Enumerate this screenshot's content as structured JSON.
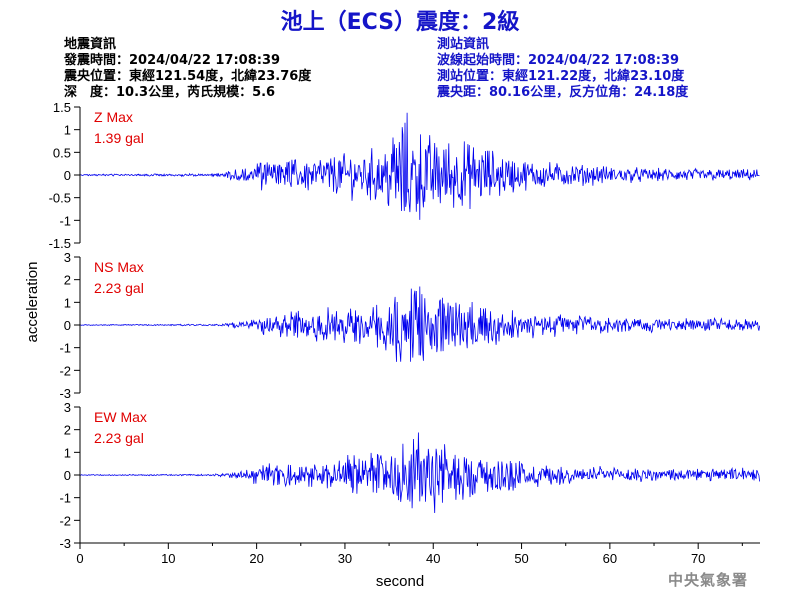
{
  "title": "池上（ECS）震度：2級",
  "event_info": {
    "heading": "地震資訊",
    "origin_time": "發震時間：2024/04/22 17:08:39",
    "epicenter": "震央位置：東經121.54度，北緯23.76度",
    "depth_magnitude": "深　度：10.3公里，芮氏規模：5.6"
  },
  "station_info": {
    "heading": "測站資訊",
    "waveform_start": "波線起始時間：2024/04/22 17:08:39",
    "station_location": "測站位置：東經121.22度，北緯23.10度",
    "distance_azimuth": "震央距：80.16公里，反方位角：24.18度"
  },
  "agency": "中央氣象署",
  "colors": {
    "title": "#1515c8",
    "trace": "#0000ee",
    "peak_label": "#e00000",
    "axis": "#000000"
  },
  "chart_data": {
    "type": "line",
    "xlabel": "second",
    "ylabel": "acceleration",
    "xlim": [
      0,
      77
    ],
    "xticks": [
      0,
      10,
      20,
      30,
      40,
      50,
      60,
      70
    ],
    "grid": false,
    "panels": [
      {
        "component": "Z",
        "peak_label": "Z Max",
        "peak_value": "1.39 gal",
        "ylim": [
          -1.5,
          1.5
        ],
        "yticks": [
          -1.5,
          -1,
          -0.5,
          0,
          0.5,
          1,
          1.5
        ],
        "ytick_labels": [
          "-1.5",
          "-1",
          "-0.5",
          "0",
          "0.5",
          "1",
          "1.5"
        ],
        "envelope": {
          "t": [
            0,
            15,
            18,
            19,
            22,
            26,
            30,
            33,
            35,
            36,
            37,
            38,
            40,
            43,
            46,
            50,
            53,
            56,
            60,
            65,
            70,
            77
          ],
          "amp": [
            0.02,
            0.03,
            0.15,
            0.3,
            0.35,
            0.4,
            0.5,
            0.6,
            0.85,
            1.2,
            1.39,
            1.1,
            0.9,
            0.8,
            0.65,
            0.35,
            0.3,
            0.25,
            0.2,
            0.15,
            0.15,
            0.12
          ]
        }
      },
      {
        "component": "NS",
        "peak_label": "NS Max",
        "peak_value": "2.23 gal",
        "ylim": [
          -3,
          3
        ],
        "yticks": [
          -3,
          -2,
          -1,
          0,
          1,
          2,
          3
        ],
        "ytick_labels": [
          "-3",
          "-2",
          "-1",
          "0",
          "1",
          "2",
          "3"
        ],
        "envelope": {
          "t": [
            0,
            16,
            19,
            20,
            23,
            26,
            30,
            33,
            35,
            36,
            37,
            38,
            40,
            43,
            46,
            50,
            55,
            60,
            65,
            70,
            77
          ],
          "amp": [
            0.02,
            0.04,
            0.2,
            0.4,
            0.6,
            0.7,
            0.9,
            1.0,
            1.5,
            2.23,
            1.6,
            1.9,
            1.5,
            1.2,
            0.9,
            0.7,
            0.45,
            0.35,
            0.3,
            0.3,
            0.25
          ]
        }
      },
      {
        "component": "EW",
        "peak_label": "EW Max",
        "peak_value": "2.23 gal",
        "ylim": [
          -3,
          3
        ],
        "yticks": [
          -3,
          -2,
          -1,
          0,
          1,
          2,
          3
        ],
        "ytick_labels": [
          "-3",
          "-2",
          "-1",
          "0",
          "1",
          "2",
          "3"
        ],
        "envelope": {
          "t": [
            0,
            15,
            18,
            20,
            23,
            26,
            30,
            33,
            36,
            38,
            39,
            40,
            42,
            45,
            48,
            52,
            56,
            60,
            65,
            70,
            77
          ],
          "amp": [
            0.02,
            0.04,
            0.15,
            0.4,
            0.55,
            0.6,
            0.8,
            1.0,
            1.3,
            1.9,
            2.23,
            1.8,
            1.3,
            0.9,
            0.8,
            0.55,
            0.4,
            0.35,
            0.3,
            0.3,
            0.3
          ]
        }
      }
    ]
  }
}
